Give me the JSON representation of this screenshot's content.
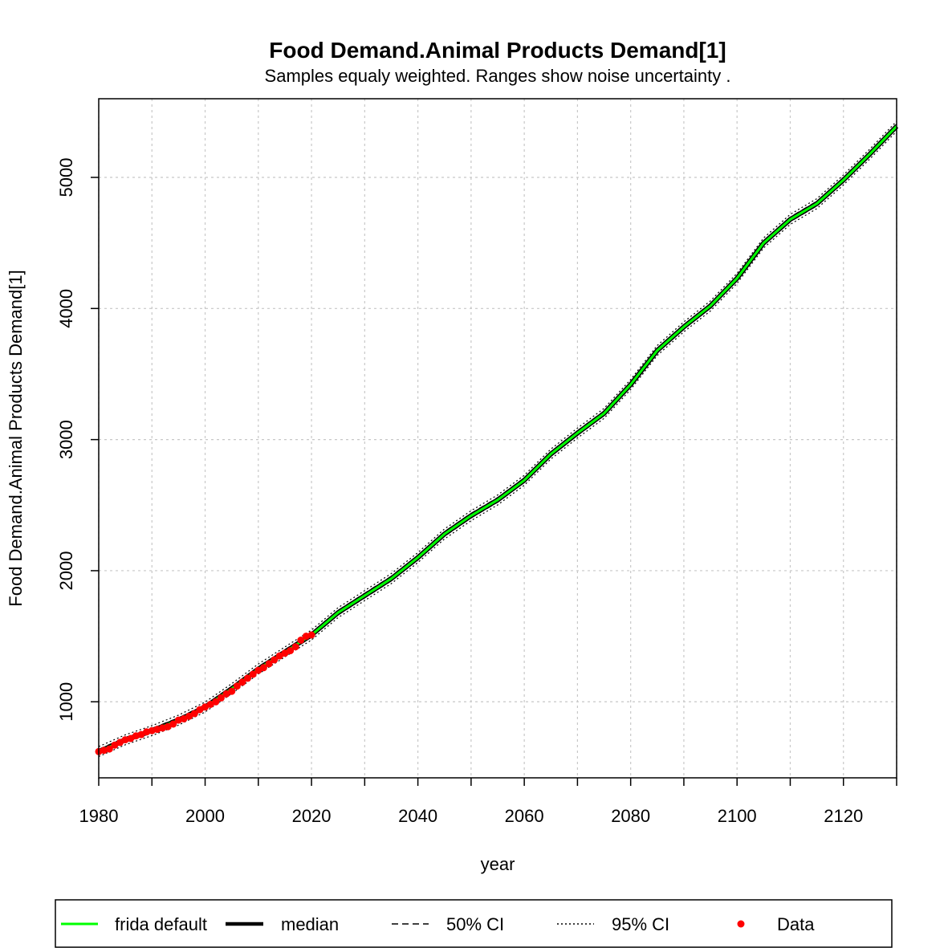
{
  "chart_data": {
    "type": "line",
    "title": "Food Demand.Animal Products Demand[1]",
    "subtitle": "Samples equaly weighted. Ranges show  noise uncertainty .",
    "xlabel": "year",
    "ylabel": "Food Demand.Animal Products Demand[1]",
    "xlim": [
      1980,
      2130
    ],
    "ylim": [
      420,
      5600
    ],
    "x_ticks": [
      1980,
      2000,
      2020,
      2040,
      2060,
      2080,
      2100,
      2120
    ],
    "y_ticks": [
      1000,
      2000,
      3000,
      4000,
      5000
    ],
    "grid": true,
    "legend_position": "bottom",
    "legend": [
      {
        "label": "frida default",
        "style": "green-line"
      },
      {
        "label": "median",
        "style": "black-thick-line"
      },
      {
        "label": "50% CI",
        "style": "dashed"
      },
      {
        "label": "95% CI",
        "style": "dotted"
      },
      {
        "label": "Data",
        "style": "red-point"
      }
    ],
    "series": [
      {
        "name": "frida default",
        "color": "#00ff00",
        "x": [
          1980,
          1985,
          1990,
          1995,
          2000,
          2005,
          2010,
          2015,
          2020,
          2025,
          2030,
          2035,
          2040,
          2045,
          2050,
          2055,
          2060,
          2065,
          2070,
          2075,
          2080,
          2085,
          2090,
          2095,
          2100,
          2105,
          2110,
          2115,
          2120,
          2125,
          2130
        ],
        "values": [
          620,
          710,
          780,
          860,
          960,
          1100,
          1250,
          1380,
          1510,
          1680,
          1810,
          1940,
          2100,
          2280,
          2420,
          2540,
          2690,
          2890,
          3050,
          3200,
          3420,
          3680,
          3860,
          4020,
          4230,
          4500,
          4680,
          4800,
          4980,
          5180,
          5390
        ]
      }
    ],
    "data_points": {
      "name": "Data",
      "color": "#ff0000",
      "x": [
        1980,
        1981,
        1982,
        1983,
        1984,
        1985,
        1986,
        1987,
        1988,
        1989,
        1990,
        1991,
        1992,
        1993,
        1994,
        1995,
        1996,
        1997,
        1998,
        1999,
        2000,
        2001,
        2002,
        2003,
        2004,
        2005,
        2006,
        2007,
        2008,
        2009,
        2010,
        2011,
        2012,
        2013,
        2014,
        2015,
        2016,
        2017,
        2018,
        2019,
        2020
      ],
      "values": [
        620,
        630,
        640,
        670,
        690,
        710,
        720,
        740,
        750,
        770,
        780,
        790,
        800,
        810,
        830,
        860,
        870,
        890,
        910,
        940,
        960,
        980,
        1000,
        1030,
        1060,
        1080,
        1120,
        1150,
        1180,
        1210,
        1240,
        1260,
        1290,
        1320,
        1350,
        1370,
        1390,
        1420,
        1470,
        1500,
        1510
      ]
    },
    "band_offsets": {
      "ci50": 18,
      "ci95": 38
    }
  },
  "colors": {
    "frida_default": "#00ff00",
    "median": "#000000",
    "data": "#ff0000",
    "grid": "#c8c8c8"
  }
}
